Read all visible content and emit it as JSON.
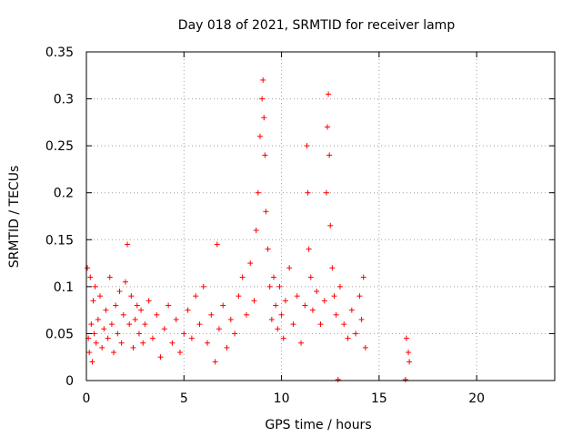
{
  "chart_data": {
    "type": "scatter",
    "title": "Day 018 of 2021, SRMTID for receiver lamp",
    "xlabel": "GPS time / hours",
    "ylabel": "SRMTID / TECUs",
    "xlim": [
      0,
      24
    ],
    "ylim": [
      0,
      0.35
    ],
    "xticks": [
      0,
      5,
      10,
      15,
      20
    ],
    "yticks": [
      0,
      0.05,
      0.1,
      0.15,
      0.2,
      0.25,
      0.3,
      0.35
    ],
    "grid": true,
    "marker": "+",
    "color": "#ff0000",
    "series": [
      {
        "name": "SRMTID",
        "points": [
          [
            0.05,
            0.12
          ],
          [
            0.1,
            0.045
          ],
          [
            0.15,
            0.03
          ],
          [
            0.2,
            0.11
          ],
          [
            0.25,
            0.06
          ],
          [
            0.3,
            0.02
          ],
          [
            0.35,
            0.085
          ],
          [
            0.4,
            0.05
          ],
          [
            0.45,
            0.1
          ],
          [
            0.5,
            0.04
          ],
          [
            0.6,
            0.065
          ],
          [
            0.7,
            0.09
          ],
          [
            0.8,
            0.035
          ],
          [
            0.9,
            0.055
          ],
          [
            1.0,
            0.075
          ],
          [
            1.1,
            0.045
          ],
          [
            1.2,
            0.11
          ],
          [
            1.3,
            0.06
          ],
          [
            1.4,
            0.03
          ],
          [
            1.5,
            0.08
          ],
          [
            1.6,
            0.05
          ],
          [
            1.7,
            0.095
          ],
          [
            1.8,
            0.04
          ],
          [
            1.9,
            0.07
          ],
          [
            2.0,
            0.105
          ],
          [
            2.1,
            0.145
          ],
          [
            2.2,
            0.06
          ],
          [
            2.3,
            0.09
          ],
          [
            2.4,
            0.035
          ],
          [
            2.5,
            0.065
          ],
          [
            2.6,
            0.08
          ],
          [
            2.7,
            0.05
          ],
          [
            2.8,
            0.075
          ],
          [
            2.9,
            0.04
          ],
          [
            3.0,
            0.06
          ],
          [
            3.2,
            0.085
          ],
          [
            3.4,
            0.045
          ],
          [
            3.6,
            0.07
          ],
          [
            3.8,
            0.025
          ],
          [
            4.0,
            0.055
          ],
          [
            4.2,
            0.08
          ],
          [
            4.4,
            0.04
          ],
          [
            4.6,
            0.065
          ],
          [
            4.8,
            0.03
          ],
          [
            5.0,
            0.05
          ],
          [
            5.2,
            0.075
          ],
          [
            5.4,
            0.045
          ],
          [
            5.6,
            0.09
          ],
          [
            5.8,
            0.06
          ],
          [
            6.0,
            0.1
          ],
          [
            6.2,
            0.04
          ],
          [
            6.4,
            0.07
          ],
          [
            6.6,
            0.02
          ],
          [
            6.7,
            0.145
          ],
          [
            6.8,
            0.055
          ],
          [
            7.0,
            0.08
          ],
          [
            7.2,
            0.035
          ],
          [
            7.4,
            0.065
          ],
          [
            7.6,
            0.05
          ],
          [
            7.8,
            0.09
          ],
          [
            8.0,
            0.11
          ],
          [
            8.2,
            0.07
          ],
          [
            8.4,
            0.125
          ],
          [
            8.6,
            0.085
          ],
          [
            8.7,
            0.16
          ],
          [
            8.8,
            0.2
          ],
          [
            8.9,
            0.26
          ],
          [
            9.0,
            0.3
          ],
          [
            9.05,
            0.32
          ],
          [
            9.1,
            0.28
          ],
          [
            9.15,
            0.24
          ],
          [
            9.2,
            0.18
          ],
          [
            9.3,
            0.14
          ],
          [
            9.4,
            0.1
          ],
          [
            9.5,
            0.065
          ],
          [
            9.6,
            0.11
          ],
          [
            9.7,
            0.08
          ],
          [
            9.8,
            0.055
          ],
          [
            9.9,
            0.1
          ],
          [
            10.0,
            0.07
          ],
          [
            10.1,
            0.045
          ],
          [
            10.2,
            0.085
          ],
          [
            10.4,
            0.12
          ],
          [
            10.6,
            0.06
          ],
          [
            10.8,
            0.09
          ],
          [
            11.0,
            0.04
          ],
          [
            11.2,
            0.08
          ],
          [
            11.3,
            0.25
          ],
          [
            11.35,
            0.2
          ],
          [
            11.4,
            0.14
          ],
          [
            11.5,
            0.11
          ],
          [
            11.6,
            0.075
          ],
          [
            11.8,
            0.095
          ],
          [
            12.0,
            0.06
          ],
          [
            12.2,
            0.085
          ],
          [
            12.3,
            0.2
          ],
          [
            12.35,
            0.27
          ],
          [
            12.4,
            0.305
          ],
          [
            12.45,
            0.24
          ],
          [
            12.5,
            0.165
          ],
          [
            12.6,
            0.12
          ],
          [
            12.7,
            0.09
          ],
          [
            12.8,
            0.07
          ],
          [
            13.0,
            0.1
          ],
          [
            13.2,
            0.06
          ],
          [
            13.4,
            0.045
          ],
          [
            13.6,
            0.075
          ],
          [
            13.8,
            0.05
          ],
          [
            14.0,
            0.09
          ],
          [
            14.1,
            0.065
          ],
          [
            14.2,
            0.11
          ],
          [
            14.3,
            0.035
          ],
          [
            16.4,
            0.045
          ],
          [
            16.5,
            0.03
          ],
          [
            16.55,
            0.02
          ],
          [
            12.9,
            0.001
          ],
          [
            16.35,
            0.001
          ]
        ]
      }
    ]
  }
}
